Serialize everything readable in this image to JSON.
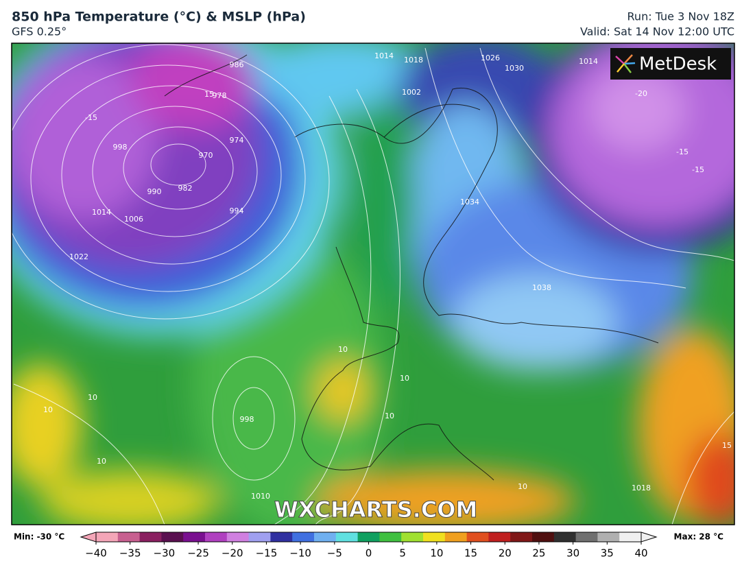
{
  "header": {
    "title": "850 hPa Temperature (°C) & MSLP (hPa)",
    "subtitle": "GFS 0.25°",
    "run": "Run: Tue 3 Nov 18Z",
    "valid": "Valid: Sat 14 Nov 12:00 UTC"
  },
  "logo": "MetDesk",
  "watermark": "WXCHARTS.COM",
  "map_labels": [
    "1014",
    "1018",
    "1026",
    "1030",
    "1014",
    "986",
    "978",
    "974",
    "970",
    "982",
    "990",
    "998",
    "1006",
    "1014",
    "1022",
    "994",
    "1002",
    "1034",
    "1038",
    "998",
    "1010",
    "1018",
    "-15",
    "-20",
    "-15",
    "-15",
    "15",
    "10",
    "10",
    "10",
    "10",
    "10",
    "10",
    "10",
    "15"
  ],
  "colorbar": {
    "min_label": "Min: -30 °C",
    "max_label": "Max: 28 °C",
    "colors": [
      "#f4a6b8",
      "#c86090",
      "#8a2060",
      "#5a1050",
      "#7a1090",
      "#b040c0",
      "#d080e0",
      "#a0a0f0",
      "#3030a0",
      "#4070e0",
      "#70b0f0",
      "#60e0e0",
      "#10a060",
      "#40c040",
      "#a0e030",
      "#f0e020",
      "#f0a020",
      "#e05020",
      "#c02020",
      "#801818",
      "#501010",
      "#303030",
      "#707070",
      "#b0b0b0",
      "#f0f0f0"
    ],
    "ticks": [
      {
        "value": -40,
        "label": "−40"
      },
      {
        "value": -35,
        "label": "−35"
      },
      {
        "value": -30,
        "label": "−30"
      },
      {
        "value": -25,
        "label": "−25"
      },
      {
        "value": -20,
        "label": "−20"
      },
      {
        "value": -15,
        "label": "−15"
      },
      {
        "value": -10,
        "label": "−10"
      },
      {
        "value": -5,
        "label": "−5"
      },
      0,
      5,
      10,
      15,
      20,
      25,
      30,
      35,
      40
    ],
    "lim": [
      -40,
      40
    ]
  }
}
